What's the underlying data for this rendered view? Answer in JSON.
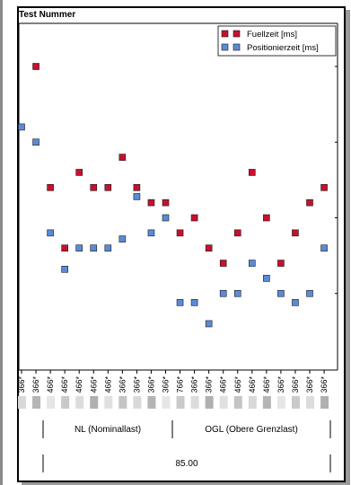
{
  "title": "Test Nummer",
  "chart_data": {
    "type": "scatter",
    "categories": [
      "366*",
      "366*",
      "466*",
      "466*",
      "466*",
      "466*",
      "466*",
      "366*",
      "366*",
      "366*",
      "366*",
      "766*",
      "366*",
      "366*",
      "466*",
      "466*",
      "466*",
      "466*",
      "366*",
      "366*",
      "366*",
      "366*"
    ],
    "ylim": [
      0,
      100
    ],
    "grid": false,
    "legend": "top-right",
    "series": [
      {
        "name": "Fuellzeit [ms]",
        "color": "#c8102e",
        "values": [
          null,
          100,
          60,
          40,
          65,
          60,
          60,
          70,
          60,
          55,
          55,
          45,
          50,
          40,
          35,
          45,
          65,
          50,
          35,
          45,
          55,
          60
        ]
      },
      {
        "name": "Positionierzeit [ms]",
        "color": "#5b8bd8",
        "values": [
          80,
          75,
          45,
          33,
          40,
          40,
          40,
          43,
          57,
          45,
          50,
          22,
          22,
          15,
          25,
          25,
          35,
          30,
          25,
          22,
          25,
          40
        ]
      }
    ]
  },
  "table": {
    "groups": [
      {
        "label": "NL (Nominallast)",
        "span": [
          1,
          10
        ]
      },
      {
        "label": "OGL (Obere Grenzlast)",
        "span": [
          11,
          21
        ]
      }
    ],
    "value": "85.00"
  }
}
